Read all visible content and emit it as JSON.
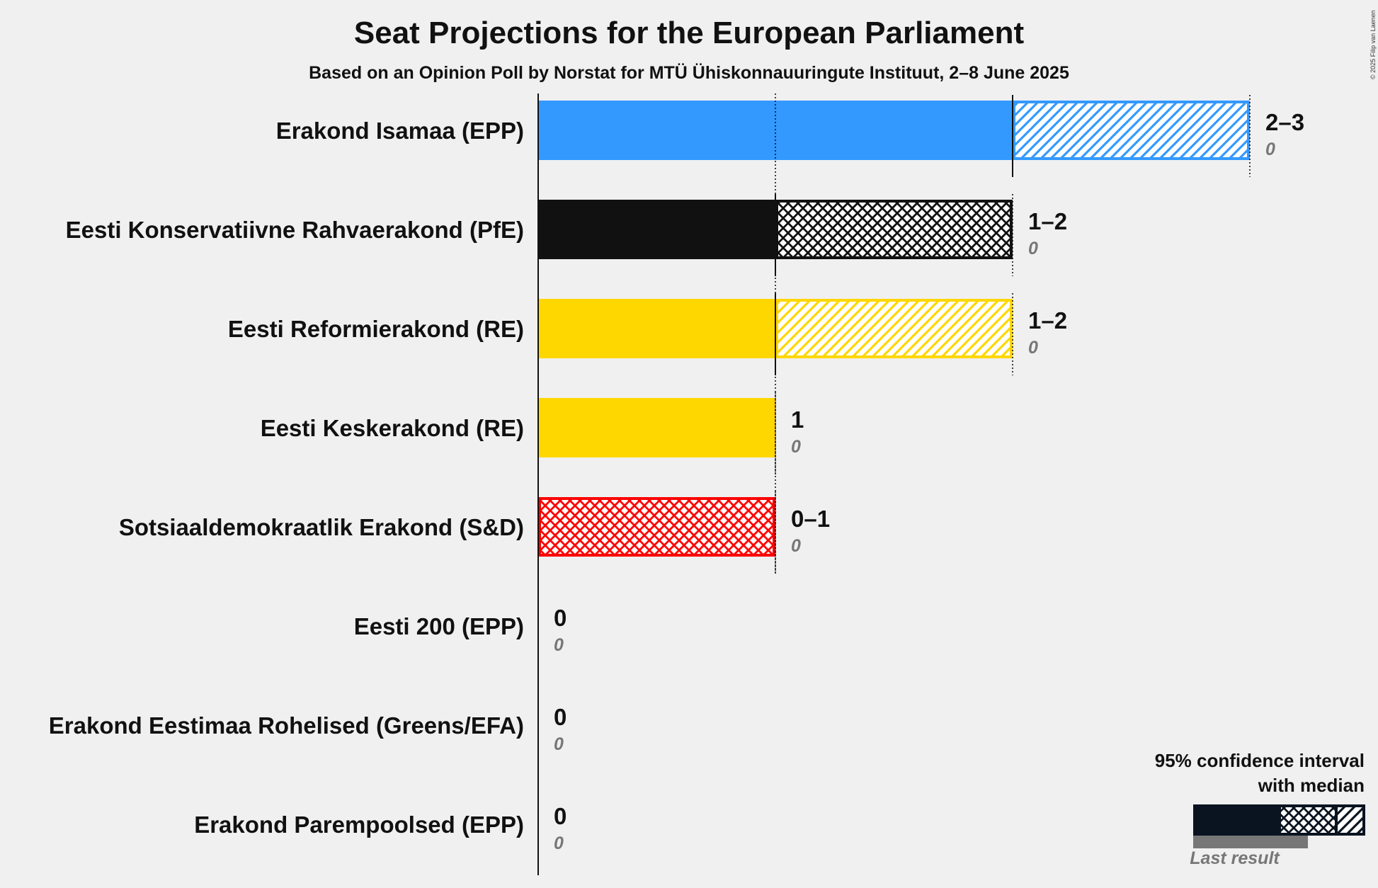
{
  "title": "Seat Projections for the European Parliament",
  "subtitle": "Based on an Opinion Poll by Norstat for MTÜ Ühiskonnauuringute Instituut, 2–8 June 2025",
  "copyright": "© 2025 Filip van Laenen",
  "legend": {
    "title_line1": "95% confidence interval",
    "title_line2": "with median",
    "last_result_label": "Last result"
  },
  "chart_data": {
    "type": "bar",
    "orientation": "horizontal",
    "x_range": [
      0,
      3
    ],
    "categories": [
      "Erakond Isamaa (EPP)",
      "Eesti Konservatiivne Rahvaerakond (PfE)",
      "Eesti Reformierakond (RE)",
      "Eesti Keskerakond (RE)",
      "Sotsiaaldemokraatlik Erakond (S&D)",
      "Eesti 200 (EPP)",
      "Erakond Eestimaa Rohelised (Greens/EFA)",
      "Erakond Parempoolsed (EPP)"
    ],
    "series": [
      {
        "name": "95% confidence interval",
        "low": [
          2,
          1,
          1,
          1,
          0,
          0,
          0,
          0
        ],
        "high": [
          3,
          2,
          2,
          1,
          1,
          0,
          0,
          0
        ]
      },
      {
        "name": "median",
        "values": [
          2,
          1,
          1,
          1,
          0,
          0,
          0,
          0
        ]
      },
      {
        "name": "Last result",
        "values": [
          0,
          0,
          0,
          0,
          0,
          0,
          0,
          0
        ]
      }
    ],
    "range_labels": [
      "2–3",
      "1–2",
      "1–2",
      "1",
      "0–1",
      "0",
      "0",
      "0"
    ],
    "last_labels": [
      "0",
      "0",
      "0",
      "0",
      "0",
      "0",
      "0",
      "0"
    ],
    "colors": [
      "#3399ff",
      "#111111",
      "#ffd700",
      "#ffd700",
      "#ff0000",
      "#3399ff",
      "#33cc33",
      "#3399ff"
    ],
    "pattern_styles": [
      "hatch",
      "cross",
      "hatch",
      "none",
      "cross",
      "none",
      "none",
      "none"
    ],
    "legend_colors": {
      "bar": "#0a1420",
      "last": "#777777"
    }
  }
}
